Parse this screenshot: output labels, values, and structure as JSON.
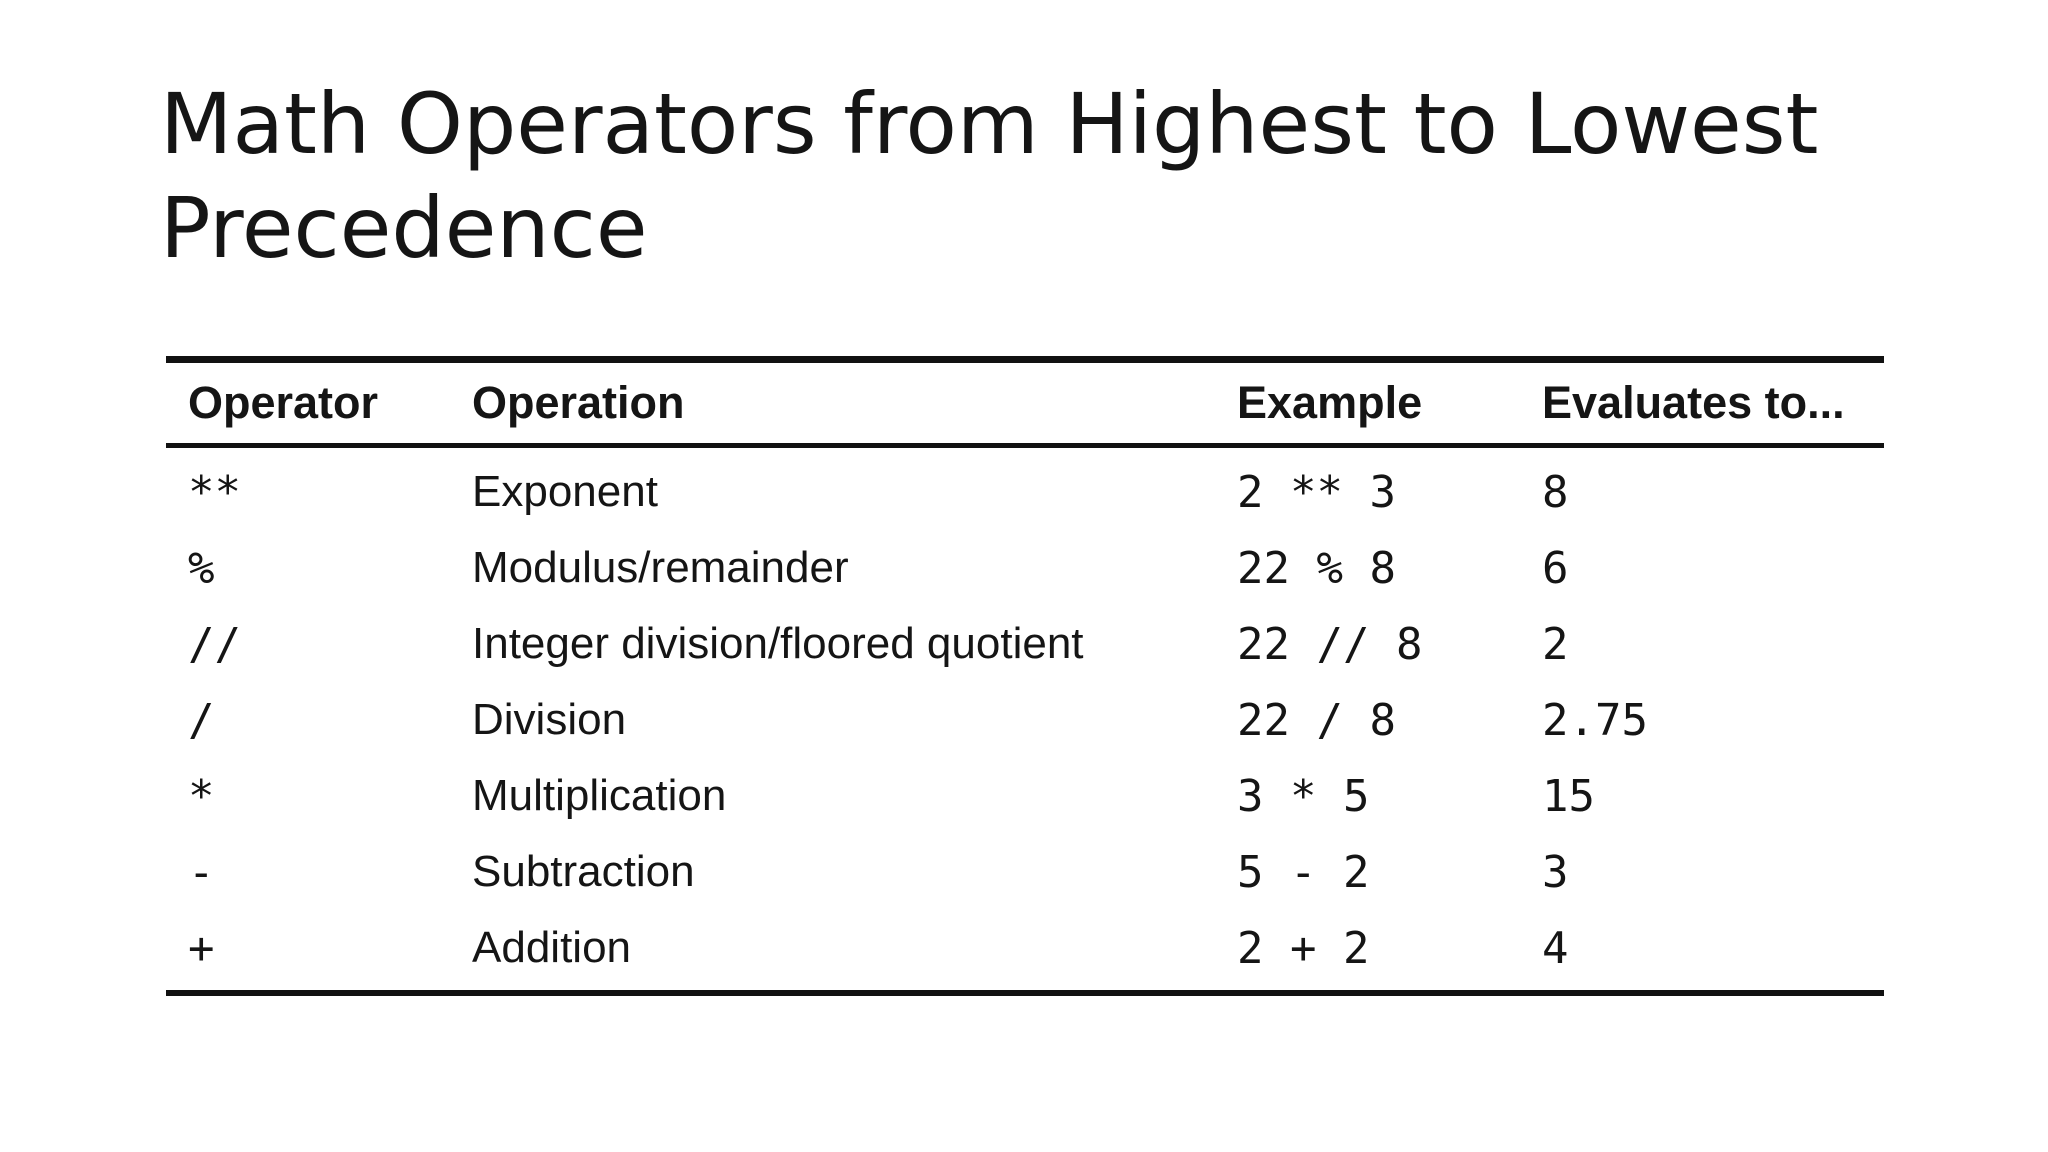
{
  "slide": {
    "title": "Math Operators from Highest to Lowest Precedence"
  },
  "table": {
    "headers": {
      "operator": "Operator",
      "operation": "Operation",
      "example": "Example",
      "evaluates": "Evaluates to..."
    },
    "rows": [
      {
        "operator": "**",
        "operation": "Exponent",
        "example": "2 ** 3",
        "result": "8"
      },
      {
        "operator": "%",
        "operation": "Modulus/remainder",
        "example": "22 % 8",
        "result": "6"
      },
      {
        "operator": "//",
        "operation": "Integer division/floored quotient",
        "example": "22 // 8",
        "result": "2"
      },
      {
        "operator": "/",
        "operation": "Division",
        "example": "22 / 8",
        "result": "2.75"
      },
      {
        "operator": "*",
        "operation": "Multiplication",
        "example": "3 * 5",
        "result": "15"
      },
      {
        "operator": "-",
        "operation": "Subtraction",
        "example": "5 - 2",
        "result": "3"
      },
      {
        "operator": "+",
        "operation": "Addition",
        "example": "2 + 2",
        "result": "4"
      }
    ]
  }
}
